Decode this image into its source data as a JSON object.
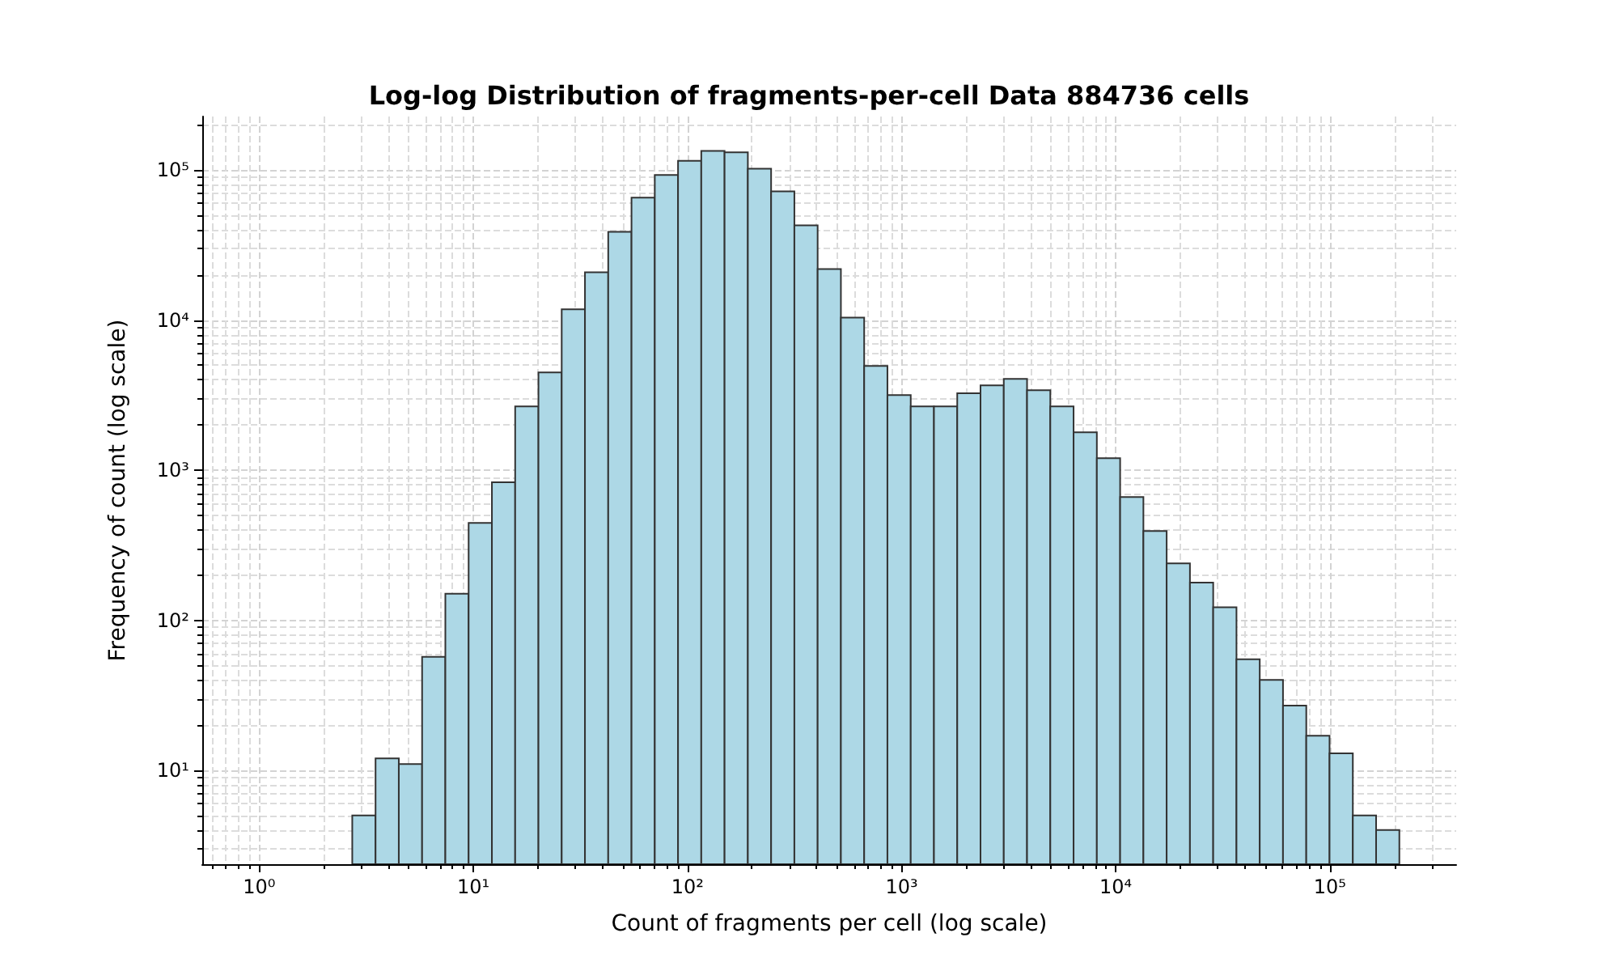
{
  "chart_data": {
    "type": "histogram",
    "title": "Log-log Distribution of fragments-per-cell Data 884736 cells",
    "xlabel": "Count of fragments per cell (log scale)",
    "ylabel": "Frequency of count (log scale)",
    "bins": [
      2.72,
      3.494,
      4.487,
      5.764,
      7.401,
      9.506,
      12.21,
      15.68,
      20.14,
      25.86,
      33.21,
      42.65,
      54.78,
      70.36,
      90.35,
      116,
      149,
      191.4,
      245.8,
      315.7,
      405.4,
      520.6,
      668.6,
      858.7,
      1103,
      1416,
      1819,
      2336,
      3000,
      3853,
      4948,
      6355,
      8161,
      10484,
      13464,
      17290,
      22210,
      28520,
      36630,
      47040,
      60410,
      77590,
      99650,
      128000,
      164400,
      211100
    ],
    "values": [
      5,
      12,
      11,
      57,
      150,
      445,
      830,
      2660,
      4480,
      11800,
      20800,
      38700,
      65300,
      92500,
      115000,
      134000,
      131000,
      102000,
      72000,
      42800,
      21900,
      10400,
      4940,
      3160,
      2660,
      2660,
      3250,
      3670,
      4060,
      3410,
      2660,
      1790,
      1200,
      662,
      393,
      239,
      178,
      122,
      55,
      40,
      27,
      17,
      13,
      5,
      4
    ],
    "color": "#add8e6",
    "log": "xy",
    "grid": true,
    "xlim": [
      0.542,
      389000
    ],
    "ylim": [
      2.37,
      227000
    ],
    "xticks": [
      {
        "value": 1,
        "label": "10⁰"
      },
      {
        "value": 10,
        "label": "10¹"
      },
      {
        "value": 100,
        "label": "10²"
      },
      {
        "value": 1000,
        "label": "10³"
      },
      {
        "value": 10000,
        "label": "10⁴"
      },
      {
        "value": 100000,
        "label": "10⁵"
      }
    ],
    "yticks": [
      {
        "value": 10,
        "label": "10¹"
      },
      {
        "value": 100,
        "label": "10²"
      },
      {
        "value": 1000,
        "label": "10³"
      },
      {
        "value": 10000,
        "label": "10⁴"
      },
      {
        "value": 100000,
        "label": "10⁵"
      }
    ]
  }
}
